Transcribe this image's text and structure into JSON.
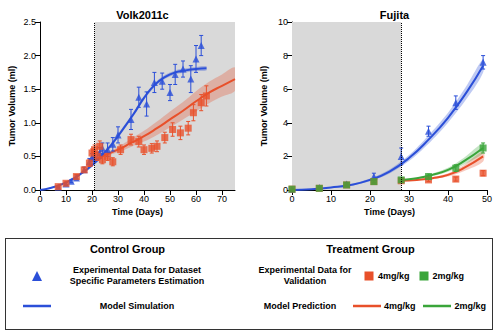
{
  "chart_data": [
    {
      "type": "scatter",
      "title": "Volk2011c",
      "x_label": "Time (Days)",
      "y_label": "Tumor Volume (ml)",
      "xlim": [
        0,
        75
      ],
      "xticks": [
        0,
        10,
        20,
        30,
        40,
        50,
        60,
        70
      ],
      "ylim": [
        0,
        2.5
      ],
      "yticks": [
        {
          "value": 0,
          "label": "0.0"
        },
        0.5,
        {
          "value": 1,
          "label": "1.0"
        },
        1.5,
        {
          "value": 2,
          "label": "2.0"
        },
        2.5
      ],
      "grid": false,
      "shaded_region": [
        21,
        75
      ],
      "series": [
        {
          "name": "Model Simulation",
          "type": "line",
          "line_style": "solid",
          "color": "#2b4fd8",
          "x": [
            0,
            4,
            8,
            12,
            16,
            20,
            24,
            28,
            32,
            36,
            40,
            44,
            48,
            52,
            56,
            60,
            64
          ],
          "values": [
            0,
            0.03,
            0.08,
            0.15,
            0.25,
            0.37,
            0.52,
            0.7,
            0.91,
            1.13,
            1.37,
            1.56,
            1.68,
            1.75,
            1.78,
            1.8,
            1.81
          ],
          "lower": [
            0,
            0.02,
            0.07,
            0.13,
            0.23,
            0.34,
            0.49,
            0.67,
            0.88,
            1.1,
            1.34,
            1.53,
            1.65,
            1.72,
            1.75,
            1.77,
            1.78
          ],
          "upper": [
            0,
            0.04,
            0.09,
            0.17,
            0.27,
            0.4,
            0.55,
            0.73,
            0.94,
            1.16,
            1.4,
            1.59,
            1.71,
            1.78,
            1.81,
            1.83,
            1.84
          ]
        },
        {
          "name": "4mg/kg",
          "type": "line",
          "line_style": "solid",
          "color": "#e8502a",
          "x": [
            21,
            25,
            30,
            35,
            40,
            45,
            50,
            55,
            60,
            65,
            70,
            75
          ],
          "values": [
            0.45,
            0.52,
            0.6,
            0.7,
            0.8,
            0.92,
            1.05,
            1.18,
            1.32,
            1.45,
            1.55,
            1.65
          ],
          "lower": [
            0.45,
            0.5,
            0.56,
            0.64,
            0.72,
            0.82,
            0.93,
            1.05,
            1.17,
            1.29,
            1.39,
            1.48
          ],
          "upper": [
            0.45,
            0.54,
            0.64,
            0.76,
            0.88,
            1.02,
            1.17,
            1.31,
            1.47,
            1.61,
            1.72,
            1.82
          ]
        },
        {
          "name": "Experimental Data for Dataset Specific Parameters Estimation",
          "type": "scatter",
          "marker": "triangle",
          "color": "#2b4fd8",
          "x": [
            7,
            10,
            12,
            14,
            17,
            19,
            20,
            21,
            23,
            24,
            26,
            28,
            30,
            35,
            38,
            41,
            44,
            47,
            50,
            52,
            55,
            58,
            60,
            62
          ],
          "values": [
            0.04,
            0.09,
            0.13,
            0.18,
            0.3,
            0.42,
            0.48,
            0.5,
            0.55,
            0.62,
            0.6,
            0.68,
            0.82,
            1.05,
            1.38,
            1.28,
            1.6,
            1.62,
            1.45,
            1.72,
            1.8,
            1.65,
            1.95,
            2.15
          ],
          "errors": [
            0.01,
            0.02,
            0.02,
            0.03,
            0.04,
            0.05,
            0.06,
            0.07,
            0.08,
            0.08,
            0.1,
            0.1,
            0.12,
            0.15,
            0.15,
            0.18,
            0.15,
            0.12,
            0.12,
            0.15,
            0.12,
            0.2,
            0.2,
            0.15
          ]
        },
        {
          "name": "4mg/kg",
          "type": "scatter",
          "marker": "square",
          "color": "#e8502a",
          "x": [
            7,
            10,
            14,
            17,
            19,
            20,
            21,
            22,
            23,
            24,
            26,
            28,
            31,
            35,
            38,
            40,
            43,
            45,
            48,
            51,
            54,
            57,
            59,
            62,
            64
          ],
          "values": [
            0.05,
            0.1,
            0.2,
            0.3,
            0.4,
            0.55,
            0.6,
            0.5,
            0.65,
            0.45,
            0.5,
            0.42,
            0.6,
            0.75,
            0.72,
            0.6,
            0.62,
            0.65,
            0.78,
            0.9,
            0.85,
            0.92,
            1.15,
            1.3,
            1.4
          ],
          "errors": [
            0.01,
            0.02,
            0.03,
            0.04,
            0.05,
            0.06,
            0.07,
            0.06,
            0.08,
            0.06,
            0.06,
            0.06,
            0.07,
            0.08,
            0.08,
            0.07,
            0.07,
            0.08,
            0.08,
            0.1,
            0.1,
            0.1,
            0.12,
            0.12,
            0.15
          ]
        }
      ]
    },
    {
      "type": "scatter",
      "title": "Fujita",
      "x_label": "Time (Days)",
      "y_label": "Tumor Volume (ml)",
      "xlim": [
        0,
        50
      ],
      "xticks": [
        0,
        10,
        20,
        30,
        40,
        50
      ],
      "ylim": [
        0,
        10
      ],
      "yticks": [
        0,
        2,
        4,
        6,
        8,
        10
      ],
      "grid": false,
      "shaded_region": [
        0,
        28
      ],
      "series": [
        {
          "name": "Model Simulation",
          "type": "line",
          "line_style": "solid",
          "color": "#2b4fd8",
          "x": [
            0,
            5,
            10,
            15,
            20,
            25,
            30,
            35,
            40,
            45,
            49
          ],
          "values": [
            0,
            0.05,
            0.15,
            0.3,
            0.6,
            1.1,
            1.9,
            3.0,
            4.3,
            5.9,
            7.4
          ],
          "lower": [
            0,
            0.04,
            0.12,
            0.26,
            0.52,
            0.98,
            1.72,
            2.75,
            4.0,
            5.5,
            7.0
          ],
          "upper": [
            0,
            0.06,
            0.18,
            0.34,
            0.68,
            1.22,
            2.08,
            3.25,
            4.6,
            6.3,
            7.8
          ]
        },
        {
          "name": "4mg/kg",
          "type": "line",
          "line_style": "solid",
          "color": "#e8502a",
          "x": [
            28,
            32,
            36,
            40,
            44,
            49
          ],
          "values": [
            0.55,
            0.6,
            0.7,
            0.9,
            1.3,
            2.0
          ],
          "lower": [
            0.55,
            0.57,
            0.64,
            0.8,
            1.12,
            1.7
          ],
          "upper": [
            0.55,
            0.63,
            0.76,
            1.0,
            1.48,
            2.3
          ]
        },
        {
          "name": "2mg/kg",
          "type": "line",
          "line_style": "solid",
          "color": "#3aa53a",
          "x": [
            28,
            32,
            36,
            40,
            44,
            49
          ],
          "values": [
            0.6,
            0.7,
            0.9,
            1.2,
            1.7,
            2.5
          ],
          "lower": [
            0.6,
            0.66,
            0.82,
            1.08,
            1.5,
            2.2
          ],
          "upper": [
            0.6,
            0.74,
            0.98,
            1.32,
            1.9,
            2.8
          ]
        },
        {
          "name": "Experimental Data for Dataset Specific Parameters Estimation",
          "type": "scatter",
          "marker": "triangle",
          "color": "#2b4fd8",
          "x": [
            0,
            7,
            14,
            21,
            28,
            35,
            42,
            49
          ],
          "values": [
            0.05,
            0.15,
            0.35,
            0.8,
            2.0,
            3.5,
            5.2,
            7.6
          ],
          "errors": [
            0.02,
            0.05,
            0.1,
            0.2,
            0.5,
            0.3,
            0.4,
            0.4
          ]
        },
        {
          "name": "4mg/kg",
          "type": "scatter",
          "marker": "square",
          "color": "#e8502a",
          "x": [
            0,
            7,
            14,
            21,
            28,
            35,
            42,
            49
          ],
          "values": [
            0.05,
            0.1,
            0.3,
            0.5,
            0.55,
            0.6,
            0.65,
            1.0
          ],
          "errors": [
            0.02,
            0.03,
            0.05,
            0.08,
            0.1,
            0.1,
            0.12,
            0.15
          ]
        },
        {
          "name": "2mg/kg",
          "type": "scatter",
          "marker": "square",
          "color": "#3aa53a",
          "x": [
            0,
            7,
            14,
            21,
            28,
            35,
            42,
            49
          ],
          "values": [
            0.05,
            0.1,
            0.3,
            0.5,
            0.6,
            0.8,
            1.3,
            2.5
          ],
          "errors": [
            0.02,
            0.03,
            0.05,
            0.08,
            0.1,
            0.15,
            0.2,
            0.3
          ]
        }
      ]
    }
  ],
  "legend_box": {
    "columns": [
      {
        "title": "Control Group",
        "rows": [
          {
            "label": "Experimental Data for Dataset Specific Parameters Estimation",
            "items": [
              {
                "marker": "triangle",
                "color": "#2b4fd8"
              }
            ]
          },
          {
            "label": "Model Simulation",
            "items": [
              {
                "marker": "line",
                "color": "#2b4fd8"
              }
            ]
          }
        ]
      },
      {
        "title": "Treatment Group",
        "rows": [
          {
            "label": "Experimental Data for Validation",
            "items": [
              {
                "marker": "square",
                "color": "#e8502a",
                "text": "4mg/kg"
              },
              {
                "marker": "square",
                "color": "#3aa53a",
                "text": "2mg/kg"
              }
            ]
          },
          {
            "label": "Model Prediction",
            "items": [
              {
                "marker": "line",
                "color": "#e8502a",
                "text": "4mg/kg"
              },
              {
                "marker": "line",
                "color": "#3aa53a",
                "text": "2mg/kg"
              }
            ]
          }
        ]
      }
    ]
  }
}
